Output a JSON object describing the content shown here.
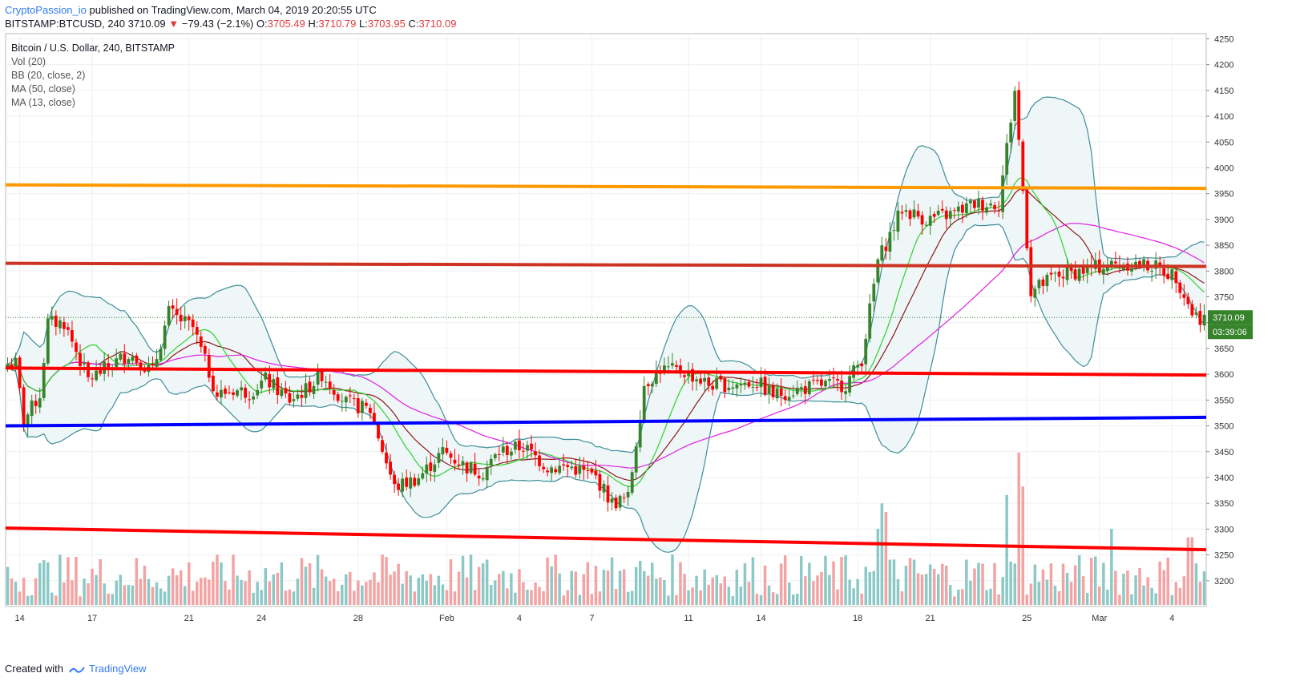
{
  "header": {
    "author": "CryptoPassion_io",
    "published_text": "published on TradingView.com, March 04, 2019 20:20:55 UTC",
    "symbol": "BITSTAMP:BTCUSD, 240",
    "last": "3710.09",
    "arrow": "▼",
    "change": "−79.43 (−2.1%)",
    "o_label": "O:",
    "o_value": "3705.49",
    "h_label": "H:",
    "h_value": "3710.79",
    "l_label": "L:",
    "l_value": "3703.95",
    "c_label": "C:",
    "c_value": "3710.09"
  },
  "legend": {
    "title": "Bitcoin / U.S. Dollar, 240, BITSTAMP",
    "vol": "Vol (20)",
    "bb": "BB (20, close, 2)",
    "ma50": "MA (50, close)",
    "ma13": "MA (13, close)"
  },
  "footer": {
    "created_with": "Created with",
    "brand": "TradingView"
  },
  "colors": {
    "up": "#36832b",
    "down": "#ff0000",
    "bb": "#3d8d98",
    "bb_fill": "#eef6f8",
    "ma50": "#e21ee2",
    "ma13": "#2bd32b",
    "mid": "#8b1a1a",
    "orange": "#ff9900",
    "darkred": "#cc3322",
    "red": "#ff0000",
    "blue": "#0000ff",
    "vol_up": "#8cc9c6",
    "vol_down": "#f3a3a3",
    "price_tag": "#36832b"
  },
  "chart_data": {
    "type": "candlestick",
    "title": "Bitcoin / U.S. Dollar, 240, BITSTAMP",
    "ylim": [
      3150,
      4260
    ],
    "y_ticks": [
      3200,
      3250,
      3300,
      3350,
      3400,
      3450,
      3500,
      3550,
      3600,
      3650,
      3700,
      3750,
      3800,
      3850,
      3900,
      3950,
      4000,
      4050,
      4100,
      4150,
      4200,
      4250
    ],
    "x_ticks": [
      {
        "label": "14",
        "index": 3
      },
      {
        "label": "17",
        "index": 21
      },
      {
        "label": "21",
        "index": 45
      },
      {
        "label": "24",
        "index": 63
      },
      {
        "label": "28",
        "index": 87
      },
      {
        "label": "Feb",
        "index": 109
      },
      {
        "label": "4",
        "index": 127
      },
      {
        "label": "7",
        "index": 145
      },
      {
        "label": "11",
        "index": 169
      },
      {
        "label": "14",
        "index": 187
      },
      {
        "label": "18",
        "index": 211
      },
      {
        "label": "21",
        "index": 229
      },
      {
        "label": "25",
        "index": 253
      },
      {
        "label": "Mar",
        "index": 271
      },
      {
        "label": "4",
        "index": 289
      }
    ],
    "last_price": "3710.09",
    "countdown": "03:39:06",
    "horizontal_levels": [
      {
        "name": "orange",
        "price": 3967,
        "slope": -0.0045
      },
      {
        "name": "darkred",
        "price": 3815,
        "slope": -0.004
      },
      {
        "name": "red",
        "price": 3612,
        "slope": -0.009
      },
      {
        "name": "blue",
        "price": 3500,
        "slope": 0.011
      },
      {
        "name": "red",
        "price": 3302,
        "slope": -0.028
      }
    ],
    "close_path": [
      [
        0,
        3620
      ],
      [
        2,
        3620
      ],
      [
        4,
        3510
      ],
      [
        8,
        3560
      ],
      [
        10,
        3700
      ],
      [
        14,
        3700
      ],
      [
        20,
        3590
      ],
      [
        26,
        3620
      ],
      [
        30,
        3640
      ],
      [
        36,
        3605
      ],
      [
        40,
        3720
      ],
      [
        46,
        3690
      ],
      [
        52,
        3560
      ],
      [
        56,
        3570
      ],
      [
        60,
        3565
      ],
      [
        64,
        3590
      ],
      [
        70,
        3550
      ],
      [
        74,
        3570
      ],
      [
        78,
        3600
      ],
      [
        84,
        3545
      ],
      [
        90,
        3530
      ],
      [
        92,
        3480
      ],
      [
        96,
        3380
      ],
      [
        102,
        3400
      ],
      [
        108,
        3450
      ],
      [
        114,
        3420
      ],
      [
        118,
        3410
      ],
      [
        122,
        3450
      ],
      [
        128,
        3460
      ],
      [
        134,
        3420
      ],
      [
        140,
        3420
      ],
      [
        146,
        3400
      ],
      [
        150,
        3350
      ],
      [
        154,
        3360
      ],
      [
        158,
        3580
      ],
      [
        162,
        3610
      ],
      [
        168,
        3605
      ],
      [
        174,
        3580
      ],
      [
        180,
        3580
      ],
      [
        186,
        3585
      ],
      [
        190,
        3560
      ],
      [
        196,
        3570
      ],
      [
        202,
        3580
      ],
      [
        208,
        3580
      ],
      [
        212,
        3630
      ],
      [
        216,
        3820
      ],
      [
        222,
        3920
      ],
      [
        228,
        3900
      ],
      [
        234,
        3910
      ],
      [
        240,
        3930
      ],
      [
        246,
        3930
      ],
      [
        250,
        4150
      ],
      [
        254,
        3760
      ],
      [
        260,
        3790
      ],
      [
        266,
        3800
      ],
      [
        272,
        3810
      ],
      [
        278,
        3815
      ],
      [
        284,
        3810
      ],
      [
        290,
        3790
      ],
      [
        294,
        3720
      ],
      [
        296,
        3710
      ]
    ],
    "volume_spikes": [
      {
        "index": 216,
        "value": 9
      },
      {
        "index": 217,
        "value": 12
      },
      {
        "index": 218,
        "value": 11
      },
      {
        "index": 248,
        "value": 13
      },
      {
        "index": 251,
        "value": 18
      },
      {
        "index": 252,
        "value": 14
      },
      {
        "index": 274,
        "value": 9
      },
      {
        "index": 293,
        "value": 8
      },
      {
        "index": 294,
        "value": 8
      }
    ]
  }
}
